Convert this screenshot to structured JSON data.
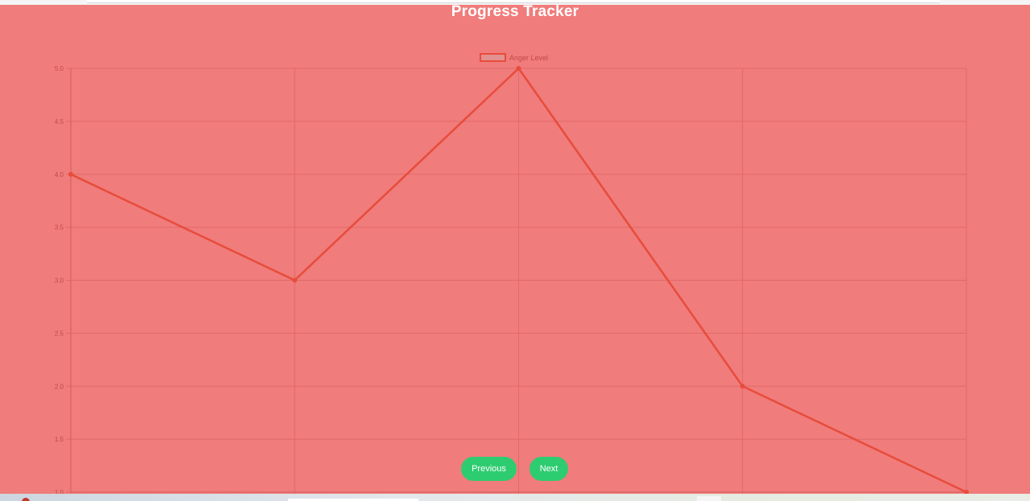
{
  "page": {
    "title": "Progress Tracker",
    "buttons": {
      "previous": "Previous",
      "next": "Next"
    }
  },
  "colors": {
    "background": "#f07c7b",
    "line": "#e74c3c",
    "legend_fill": "#e39090",
    "grid": "#e06a68",
    "tick_text": "#c04a4a",
    "button": "#2ecc71",
    "title": "#ffffff"
  },
  "chart_data": {
    "type": "line",
    "title": "",
    "xlabel": "",
    "ylabel": "",
    "categories": [
      "",
      "",
      "",
      "",
      ""
    ],
    "ylim": [
      1.0,
      5.0
    ],
    "yticks": [
      "1.0",
      "1.5",
      "2.0",
      "2.5",
      "3.0",
      "3.5",
      "4.0",
      "4.5",
      "5.0"
    ],
    "grid": true,
    "legend_position": "top-center",
    "series": [
      {
        "name": "Anger Level",
        "values": [
          4,
          3,
          5,
          2,
          1
        ],
        "color": "#e74c3c"
      }
    ]
  }
}
